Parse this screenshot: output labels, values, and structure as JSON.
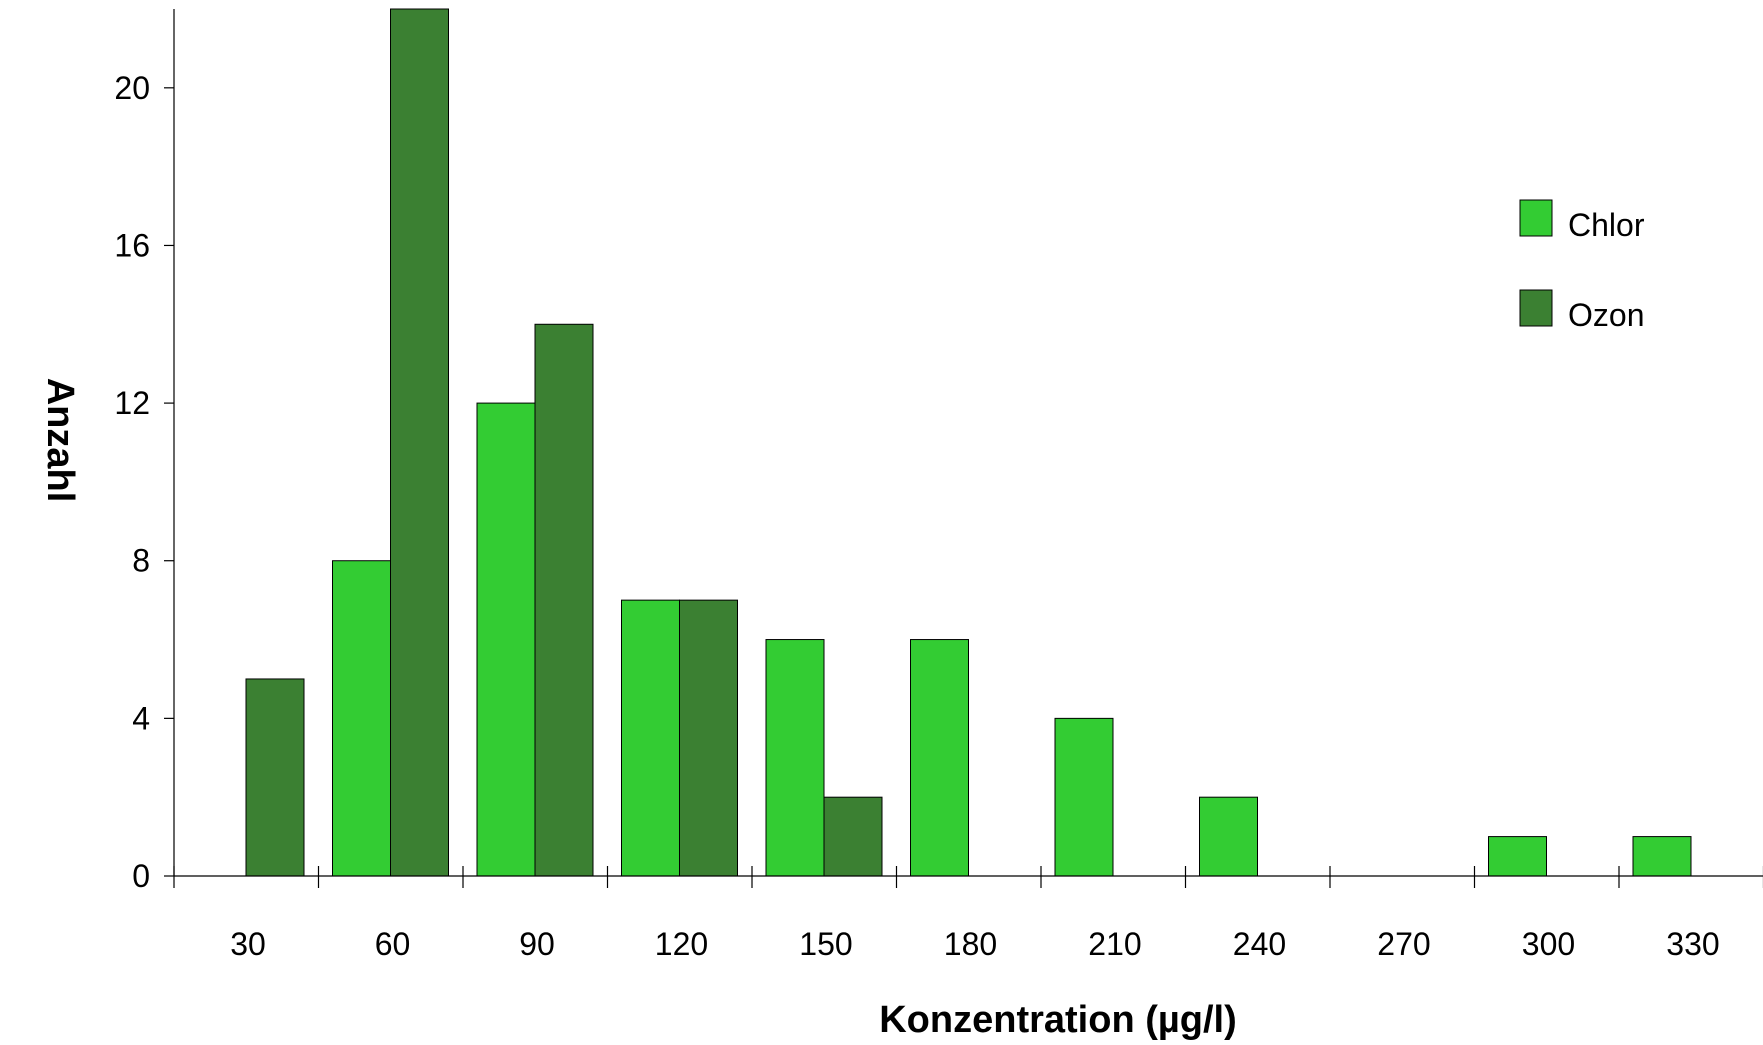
{
  "chart_data": {
    "type": "bar",
    "title": "",
    "xlabel": "Konzentration (µg/l)",
    "ylabel": "Anzahl",
    "categories": [
      "30",
      "60",
      "90",
      "120",
      "150",
      "180",
      "210",
      "240",
      "270",
      "300",
      "330"
    ],
    "series": [
      {
        "name": "Chlor",
        "color": "#33cc33",
        "values": [
          0,
          8,
          12,
          7,
          6,
          6,
          4,
          2,
          0,
          1,
          1
        ]
      },
      {
        "name": "Ozon",
        "color": "#3b8032",
        "values": [
          5,
          22,
          14,
          7,
          2,
          0,
          0,
          0,
          0,
          0,
          0
        ]
      }
    ],
    "ylim": [
      0,
      22
    ],
    "yticks": [
      0,
      4,
      8,
      12,
      16,
      20
    ],
    "grid": false,
    "legend_position": "top-right"
  }
}
